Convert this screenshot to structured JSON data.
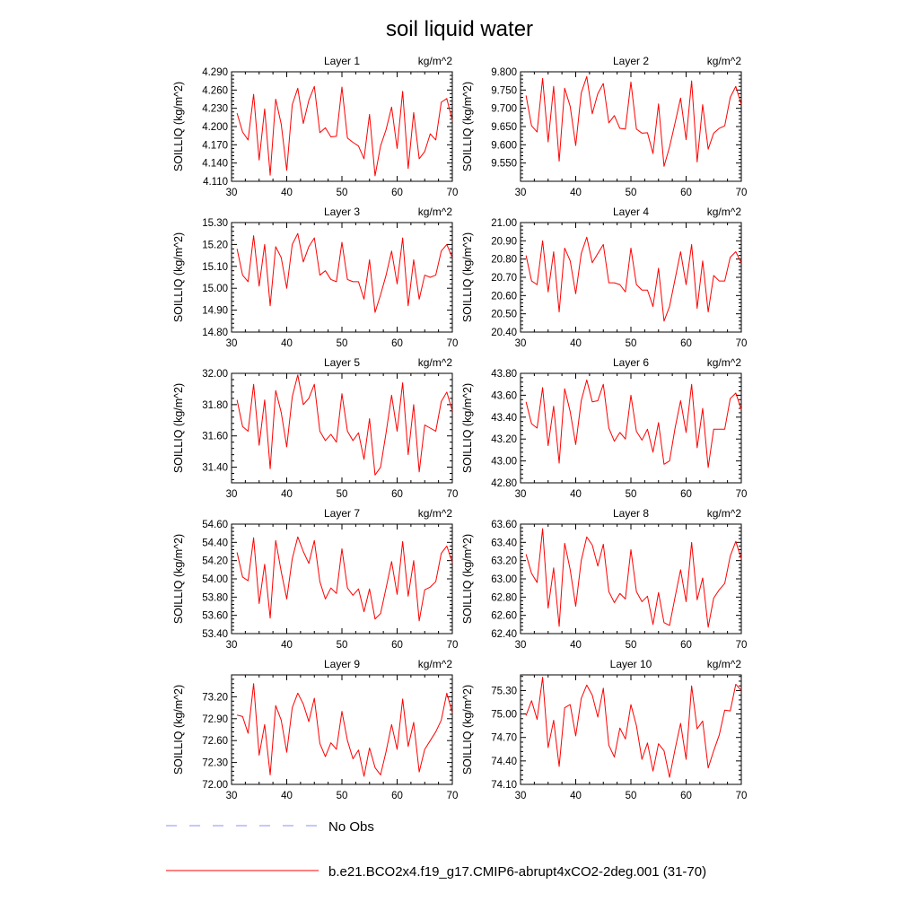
{
  "title": "soil liquid water",
  "legend": [
    {
      "label": "No Obs",
      "color": "#8c8cff",
      "style": "dashed"
    },
    {
      "label": "b.e21.BCO2x4.f19_g17.CMIP6-abrupt4xCO2-2deg.001 (31-70)",
      "color": "#ff0000",
      "style": "solid"
    }
  ],
  "chart_data": [
    {
      "type": "line",
      "title": "Layer 1",
      "units": "kg/m^2",
      "ylabel": "SOILLIQ  (kg/m^2)",
      "xlim": [
        30,
        70
      ],
      "xticks": [
        30,
        40,
        50,
        60,
        70
      ],
      "ylim": [
        4.11,
        4.29
      ],
      "yticks": [
        "4.110",
        "4.140",
        "4.170",
        "4.200",
        "4.230",
        "4.260",
        "4.290"
      ],
      "x": [
        31,
        32,
        33,
        34,
        35,
        36,
        37,
        38,
        39,
        40,
        41,
        42,
        43,
        44,
        45,
        46,
        47,
        48,
        49,
        50,
        51,
        52,
        53,
        54,
        55,
        56,
        57,
        58,
        59,
        60,
        61,
        62,
        63,
        64,
        65,
        66,
        67,
        68,
        69,
        70
      ],
      "series": [
        {
          "name": "b.e21.BCO2x4.f19_g17.CMIP6-abrupt4xCO2-2deg.001 (31-70)",
          "color": "#ff0000",
          "values": [
            4.222,
            4.191,
            4.178,
            4.253,
            4.145,
            4.229,
            4.12,
            4.245,
            4.204,
            4.128,
            4.236,
            4.263,
            4.205,
            4.243,
            4.266,
            4.19,
            4.198,
            4.183,
            4.184,
            4.265,
            4.181,
            4.174,
            4.168,
            4.147,
            4.22,
            4.119,
            4.168,
            4.195,
            4.232,
            4.164,
            4.258,
            4.131,
            4.223,
            4.147,
            4.159,
            4.188,
            4.178,
            4.24,
            4.246,
            4.21
          ]
        }
      ]
    },
    {
      "type": "line",
      "title": "Layer 2",
      "units": "kg/m^2",
      "ylabel": "SOILLIQ  (kg/m^2)",
      "xlim": [
        30,
        70
      ],
      "xticks": [
        30,
        40,
        50,
        60,
        70
      ],
      "ylim": [
        9.5,
        9.8
      ],
      "yticks": [
        "9.550",
        "9.600",
        "9.650",
        "9.700",
        "9.750",
        "9.800"
      ],
      "x": [
        31,
        32,
        33,
        34,
        35,
        36,
        37,
        38,
        39,
        40,
        41,
        42,
        43,
        44,
        45,
        46,
        47,
        48,
        49,
        50,
        51,
        52,
        53,
        54,
        55,
        56,
        57,
        58,
        59,
        60,
        61,
        62,
        63,
        64,
        65,
        66,
        67,
        68,
        69,
        70
      ],
      "series": [
        {
          "name": "b.e21.BCO2x4.f19_g17.CMIP6-abrupt4xCO2-2deg.001 (31-70)",
          "color": "#ff0000",
          "values": [
            9.735,
            9.652,
            9.635,
            9.782,
            9.608,
            9.76,
            9.555,
            9.755,
            9.705,
            9.598,
            9.742,
            9.787,
            9.685,
            9.74,
            9.768,
            9.66,
            9.68,
            9.645,
            9.643,
            9.772,
            9.643,
            9.632,
            9.633,
            9.576,
            9.712,
            9.541,
            9.594,
            9.66,
            9.728,
            9.614,
            9.775,
            9.553,
            9.71,
            9.588,
            9.632,
            9.645,
            9.652,
            9.73,
            9.76,
            9.71
          ]
        }
      ]
    },
    {
      "type": "line",
      "title": "Layer 3",
      "units": "kg/m^2",
      "ylabel": "SOILLIQ  (kg/m^2)",
      "xlim": [
        30,
        70
      ],
      "xticks": [
        30,
        40,
        50,
        60,
        70
      ],
      "ylim": [
        14.8,
        15.3
      ],
      "yticks": [
        "14.80",
        "14.90",
        "15.00",
        "15.10",
        "15.20",
        "15.30"
      ],
      "x": [
        31,
        32,
        33,
        34,
        35,
        36,
        37,
        38,
        39,
        40,
        41,
        42,
        43,
        44,
        45,
        46,
        47,
        48,
        49,
        50,
        51,
        52,
        53,
        54,
        55,
        56,
        57,
        58,
        59,
        60,
        61,
        62,
        63,
        64,
        65,
        66,
        67,
        68,
        69,
        70
      ],
      "series": [
        {
          "name": "b.e21.BCO2x4.f19_g17.CMIP6-abrupt4xCO2-2deg.001 (31-70)",
          "color": "#ff0000",
          "values": [
            15.18,
            15.06,
            15.03,
            15.24,
            15.01,
            15.2,
            14.92,
            15.19,
            15.14,
            15.0,
            15.2,
            15.25,
            15.12,
            15.19,
            15.23,
            15.06,
            15.08,
            15.04,
            15.03,
            15.21,
            15.04,
            15.03,
            15.03,
            14.95,
            15.13,
            14.89,
            14.97,
            15.06,
            15.17,
            15.02,
            15.23,
            14.92,
            15.13,
            14.95,
            15.06,
            15.05,
            15.06,
            15.17,
            15.2,
            15.14
          ]
        }
      ]
    },
    {
      "type": "line",
      "title": "Layer 4",
      "units": "kg/m^2",
      "ylabel": "SOILLIQ  (kg/m^2)",
      "xlim": [
        30,
        70
      ],
      "xticks": [
        30,
        40,
        50,
        60,
        70
      ],
      "ylim": [
        20.4,
        21.0
      ],
      "yticks": [
        "20.40",
        "20.50",
        "20.60",
        "20.70",
        "20.80",
        "20.90",
        "21.00"
      ],
      "x": [
        31,
        32,
        33,
        34,
        35,
        36,
        37,
        38,
        39,
        40,
        41,
        42,
        43,
        44,
        45,
        46,
        47,
        48,
        49,
        50,
        51,
        52,
        53,
        54,
        55,
        56,
        57,
        58,
        59,
        60,
        61,
        62,
        63,
        64,
        65,
        66,
        67,
        68,
        69,
        70
      ],
      "series": [
        {
          "name": "b.e21.BCO2x4.f19_g17.CMIP6-abrupt4xCO2-2deg.001 (31-70)",
          "color": "#ff0000",
          "values": [
            20.82,
            20.68,
            20.66,
            20.9,
            20.62,
            20.84,
            20.51,
            20.86,
            20.79,
            20.61,
            20.83,
            20.92,
            20.78,
            20.83,
            20.88,
            20.67,
            20.67,
            20.66,
            20.62,
            20.86,
            20.66,
            20.63,
            20.63,
            20.54,
            20.75,
            20.46,
            20.54,
            20.69,
            20.84,
            20.66,
            20.88,
            20.53,
            20.79,
            20.51,
            20.71,
            20.68,
            20.68,
            20.81,
            20.84,
            20.78
          ]
        }
      ]
    },
    {
      "type": "line",
      "title": "Layer 5",
      "units": "kg/m^2",
      "ylabel": "SOILLIQ  (kg/m^2)",
      "xlim": [
        30,
        70
      ],
      "xticks": [
        30,
        40,
        50,
        60,
        70
      ],
      "ylim": [
        31.3,
        32.0
      ],
      "yticks": [
        "31.40",
        "31.60",
        "31.80",
        "32.00"
      ],
      "x": [
        31,
        32,
        33,
        34,
        35,
        36,
        37,
        38,
        39,
        40,
        41,
        42,
        43,
        44,
        45,
        46,
        47,
        48,
        49,
        50,
        51,
        52,
        53,
        54,
        55,
        56,
        57,
        58,
        59,
        60,
        61,
        62,
        63,
        64,
        65,
        66,
        67,
        68,
        69,
        70
      ],
      "series": [
        {
          "name": "b.e21.BCO2x4.f19_g17.CMIP6-abrupt4xCO2-2deg.001 (31-70)",
          "color": "#ff0000",
          "values": [
            31.83,
            31.66,
            31.63,
            31.93,
            31.54,
            31.83,
            31.39,
            31.89,
            31.75,
            31.53,
            31.85,
            31.99,
            31.8,
            31.84,
            31.93,
            31.63,
            31.57,
            31.61,
            31.56,
            31.87,
            31.63,
            31.57,
            31.62,
            31.45,
            31.71,
            31.35,
            31.4,
            31.62,
            31.86,
            31.63,
            31.94,
            31.48,
            31.8,
            31.37,
            31.67,
            31.65,
            31.63,
            31.82,
            31.88,
            31.76
          ]
        }
      ]
    },
    {
      "type": "line",
      "title": "Layer 6",
      "units": "kg/m^2",
      "ylabel": "SOILLIQ  (kg/m^2)",
      "xlim": [
        30,
        70
      ],
      "xticks": [
        30,
        40,
        50,
        60,
        70
      ],
      "ylim": [
        42.8,
        43.8
      ],
      "yticks": [
        "42.80",
        "43.00",
        "43.20",
        "43.40",
        "43.60",
        "43.80"
      ],
      "x": [
        31,
        32,
        33,
        34,
        35,
        36,
        37,
        38,
        39,
        40,
        41,
        42,
        43,
        44,
        45,
        46,
        47,
        48,
        49,
        50,
        51,
        52,
        53,
        54,
        55,
        56,
        57,
        58,
        59,
        60,
        61,
        62,
        63,
        64,
        65,
        66,
        67,
        68,
        69,
        70
      ],
      "series": [
        {
          "name": "b.e21.BCO2x4.f19_g17.CMIP6-abrupt4xCO2-2deg.001 (31-70)",
          "color": "#ff0000",
          "values": [
            43.54,
            43.34,
            43.3,
            43.67,
            43.14,
            43.5,
            42.98,
            43.66,
            43.45,
            43.15,
            43.55,
            43.74,
            43.54,
            43.55,
            43.7,
            43.3,
            43.18,
            43.26,
            43.2,
            43.6,
            43.27,
            43.19,
            43.29,
            43.08,
            43.35,
            42.97,
            43.0,
            43.3,
            43.55,
            43.26,
            43.7,
            43.12,
            43.48,
            42.94,
            43.29,
            43.29,
            43.29,
            43.57,
            43.62,
            43.47
          ]
        }
      ]
    },
    {
      "type": "line",
      "title": "Layer 7",
      "units": "kg/m^2",
      "ylabel": "SOILLIQ  (kg/m^2)",
      "xlim": [
        30,
        70
      ],
      "xticks": [
        30,
        40,
        50,
        60,
        70
      ],
      "ylim": [
        53.4,
        54.6
      ],
      "yticks": [
        "53.40",
        "53.60",
        "53.80",
        "54.00",
        "54.20",
        "54.40",
        "54.60"
      ],
      "x": [
        31,
        32,
        33,
        34,
        35,
        36,
        37,
        38,
        39,
        40,
        41,
        42,
        43,
        44,
        45,
        46,
        47,
        48,
        49,
        50,
        51,
        52,
        53,
        54,
        55,
        56,
        57,
        58,
        59,
        60,
        61,
        62,
        63,
        64,
        65,
        66,
        67,
        68,
        69,
        70
      ],
      "series": [
        {
          "name": "b.e21.BCO2x4.f19_g17.CMIP6-abrupt4xCO2-2deg.001 (31-70)",
          "color": "#ff0000",
          "values": [
            54.29,
            54.02,
            53.98,
            54.45,
            53.73,
            54.16,
            53.57,
            54.42,
            54.08,
            53.78,
            54.22,
            54.46,
            54.3,
            54.17,
            54.42,
            53.97,
            53.78,
            53.9,
            53.84,
            54.33,
            53.9,
            53.82,
            53.89,
            53.64,
            53.89,
            53.56,
            53.62,
            53.9,
            54.19,
            53.83,
            54.41,
            53.81,
            54.2,
            53.54,
            53.88,
            53.91,
            53.97,
            54.28,
            54.36,
            54.18
          ]
        }
      ]
    },
    {
      "type": "line",
      "title": "Layer 8",
      "units": "kg/m^2",
      "ylabel": "SOILLIQ  (kg/m^2)",
      "xlim": [
        30,
        70
      ],
      "xticks": [
        30,
        40,
        50,
        60,
        70
      ],
      "ylim": [
        62.4,
        63.6
      ],
      "yticks": [
        "62.40",
        "62.60",
        "62.80",
        "63.00",
        "63.20",
        "63.40",
        "63.60"
      ],
      "x": [
        31,
        32,
        33,
        34,
        35,
        36,
        37,
        38,
        39,
        40,
        41,
        42,
        43,
        44,
        45,
        46,
        47,
        48,
        49,
        50,
        51,
        52,
        53,
        54,
        55,
        56,
        57,
        58,
        59,
        60,
        61,
        62,
        63,
        64,
        65,
        66,
        67,
        68,
        69,
        70
      ],
      "series": [
        {
          "name": "b.e21.BCO2x4.f19_g17.CMIP6-abrupt4xCO2-2deg.001 (31-70)",
          "color": "#ff0000",
          "values": [
            63.27,
            63.06,
            62.96,
            63.55,
            62.68,
            63.12,
            62.48,
            63.39,
            63.1,
            62.7,
            63.2,
            63.46,
            63.37,
            63.14,
            63.38,
            62.86,
            62.74,
            62.84,
            62.78,
            63.32,
            62.86,
            62.75,
            62.81,
            62.5,
            62.85,
            62.52,
            62.49,
            62.8,
            63.1,
            62.75,
            63.4,
            62.77,
            63.01,
            62.47,
            62.79,
            62.88,
            62.95,
            63.25,
            63.41,
            63.22
          ]
        }
      ]
    },
    {
      "type": "line",
      "title": "Layer 9",
      "units": "kg/m^2",
      "ylabel": "SOILLIQ  (kg/m^2)",
      "xlim": [
        30,
        70
      ],
      "xticks": [
        30,
        40,
        50,
        60,
        70
      ],
      "ylim": [
        72.0,
        73.5
      ],
      "yticks": [
        "72.00",
        "72.30",
        "72.60",
        "72.90",
        "73.20"
      ],
      "x": [
        31,
        32,
        33,
        34,
        35,
        36,
        37,
        38,
        39,
        40,
        41,
        42,
        43,
        44,
        45,
        46,
        47,
        48,
        49,
        50,
        51,
        52,
        53,
        54,
        55,
        56,
        57,
        58,
        59,
        60,
        61,
        62,
        63,
        64,
        65,
        66,
        67,
        68,
        69,
        70
      ],
      "series": [
        {
          "name": "b.e21.BCO2x4.f19_g17.CMIP6-abrupt4xCO2-2deg.001 (31-70)",
          "color": "#ff0000",
          "values": [
            72.95,
            72.93,
            72.7,
            73.38,
            72.4,
            72.82,
            72.13,
            73.08,
            72.88,
            72.44,
            73.05,
            73.25,
            73.1,
            72.86,
            73.18,
            72.56,
            72.38,
            72.57,
            72.48,
            73.0,
            72.6,
            72.35,
            72.47,
            72.11,
            72.5,
            72.23,
            72.13,
            72.45,
            72.82,
            72.48,
            73.17,
            72.52,
            72.85,
            72.17,
            72.48,
            72.6,
            72.72,
            72.88,
            73.25,
            72.98
          ]
        }
      ]
    },
    {
      "type": "line",
      "title": "Layer 10",
      "units": "kg/m^2",
      "ylabel": "SOILLIQ  (kg/m^2)",
      "xlim": [
        30,
        70
      ],
      "xticks": [
        30,
        40,
        50,
        60,
        70
      ],
      "ylim": [
        74.1,
        75.5
      ],
      "yticks": [
        "74.10",
        "74.40",
        "74.70",
        "75.00",
        "75.30"
      ],
      "x": [
        31,
        32,
        33,
        34,
        35,
        36,
        37,
        38,
        39,
        40,
        41,
        42,
        43,
        44,
        45,
        46,
        47,
        48,
        49,
        50,
        51,
        52,
        53,
        54,
        55,
        56,
        57,
        58,
        59,
        60,
        61,
        62,
        63,
        64,
        65,
        66,
        67,
        68,
        69,
        70
      ],
      "series": [
        {
          "name": "b.e21.BCO2x4.f19_g17.CMIP6-abrupt4xCO2-2deg.001 (31-70)",
          "color": "#ff0000",
          "values": [
            74.98,
            75.17,
            74.93,
            75.47,
            74.57,
            74.92,
            74.33,
            75.08,
            75.12,
            74.72,
            75.2,
            75.37,
            75.24,
            74.96,
            75.33,
            74.6,
            74.45,
            74.82,
            74.68,
            75.12,
            74.85,
            74.42,
            74.63,
            74.27,
            74.62,
            74.53,
            74.19,
            74.55,
            74.88,
            74.42,
            75.36,
            74.81,
            74.91,
            74.31,
            74.53,
            74.73,
            75.05,
            75.04,
            75.38,
            75.3
          ]
        }
      ]
    }
  ]
}
